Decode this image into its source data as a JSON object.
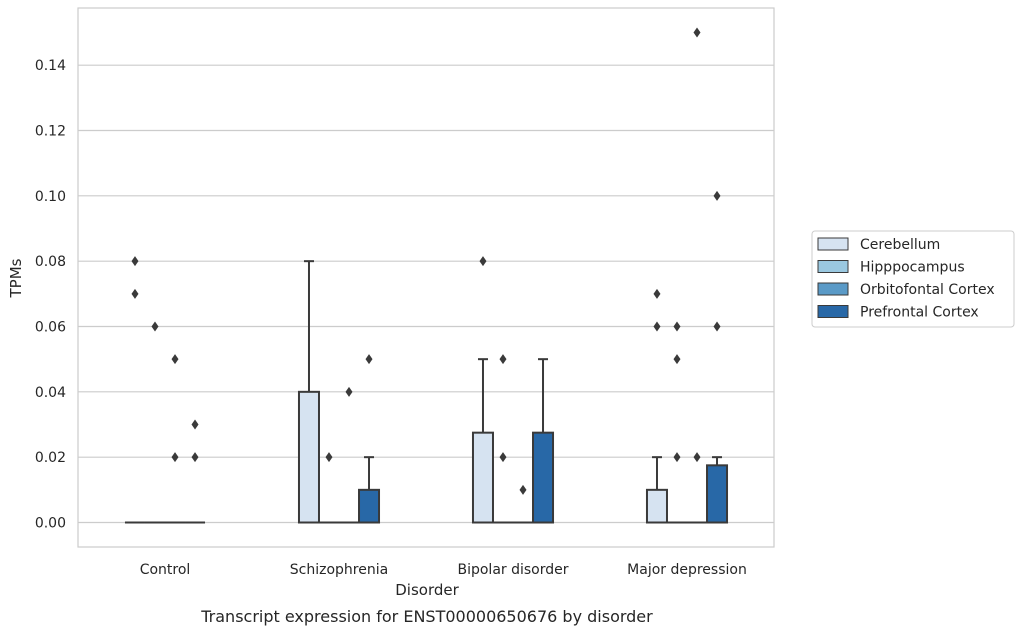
{
  "chart_data": {
    "type": "box",
    "caption": "Transcript expression for ENST00000650676 by disorder",
    "xlabel": "Disorder",
    "ylabel": "TPMs",
    "ylim": [
      -0.0075,
      0.1575
    ],
    "yticks": [
      0.0,
      0.02,
      0.04,
      0.06,
      0.08,
      0.1,
      0.12,
      0.14
    ],
    "ytick_labels": [
      "0.00",
      "0.02",
      "0.04",
      "0.06",
      "0.08",
      "0.10",
      "0.12",
      "0.14"
    ],
    "grid": "horizontal",
    "legend_position": "right-center",
    "categories": [
      "Control",
      "Schizophrenia",
      "Bipolar disorder",
      "Major depression"
    ],
    "series": [
      {
        "name": "Cerebellum",
        "color": "#d6e3f1",
        "boxes": [
          {
            "q1": 0,
            "median": 0,
            "q3": 0,
            "whisker_low": 0,
            "whisker_high": 0,
            "outliers": [
              0.08,
              0.07
            ]
          },
          {
            "q1": 0,
            "median": 0,
            "q3": 0.04,
            "whisker_low": 0,
            "whisker_high": 0.08,
            "outliers": []
          },
          {
            "q1": 0,
            "median": 0,
            "q3": 0.0275,
            "whisker_low": 0,
            "whisker_high": 0.05,
            "outliers": [
              0.08
            ]
          },
          {
            "q1": 0,
            "median": 0,
            "q3": 0.01,
            "whisker_low": 0,
            "whisker_high": 0.02,
            "outliers": [
              0.07,
              0.06
            ]
          }
        ]
      },
      {
        "name": "Hipppocampus",
        "color": "#9ac8e0",
        "boxes": [
          {
            "q1": 0,
            "median": 0,
            "q3": 0,
            "whisker_low": 0,
            "whisker_high": 0,
            "outliers": [
              0.06
            ]
          },
          {
            "q1": 0,
            "median": 0,
            "q3": 0,
            "whisker_low": 0,
            "whisker_high": 0,
            "outliers": [
              0.02
            ]
          },
          {
            "q1": 0,
            "median": 0,
            "q3": 0,
            "whisker_low": 0,
            "whisker_high": 0,
            "outliers": [
              0.05,
              0.02
            ]
          },
          {
            "q1": 0,
            "median": 0,
            "q3": 0,
            "whisker_low": 0,
            "whisker_high": 0,
            "outliers": [
              0.06,
              0.05,
              0.02
            ]
          }
        ]
      },
      {
        "name": "Orbitofontal Cortex",
        "color": "#5a9ac7",
        "boxes": [
          {
            "q1": 0,
            "median": 0,
            "q3": 0,
            "whisker_low": 0,
            "whisker_high": 0,
            "outliers": [
              0.05,
              0.02
            ]
          },
          {
            "q1": 0,
            "median": 0,
            "q3": 0,
            "whisker_low": 0,
            "whisker_high": 0,
            "outliers": [
              0.04
            ]
          },
          {
            "q1": 0,
            "median": 0,
            "q3": 0,
            "whisker_low": 0,
            "whisker_high": 0,
            "outliers": [
              0.01
            ]
          },
          {
            "q1": 0,
            "median": 0,
            "q3": 0,
            "whisker_low": 0,
            "whisker_high": 0,
            "outliers": [
              0.15,
              0.02
            ]
          }
        ]
      },
      {
        "name": "Prefrontal Cortex",
        "color": "#2868a7",
        "boxes": [
          {
            "q1": 0,
            "median": 0,
            "q3": 0,
            "whisker_low": 0,
            "whisker_high": 0,
            "outliers": [
              0.03,
              0.02
            ]
          },
          {
            "q1": 0,
            "median": 0,
            "q3": 0.01,
            "whisker_low": 0,
            "whisker_high": 0.02,
            "outliers": [
              0.05
            ]
          },
          {
            "q1": 0,
            "median": 0,
            "q3": 0.0275,
            "whisker_low": 0,
            "whisker_high": 0.05,
            "outliers": []
          },
          {
            "q1": 0,
            "median": 0,
            "q3": 0.0175,
            "whisker_low": 0,
            "whisker_high": 0.02,
            "outliers": [
              0.1,
              0.06
            ]
          }
        ]
      }
    ]
  }
}
